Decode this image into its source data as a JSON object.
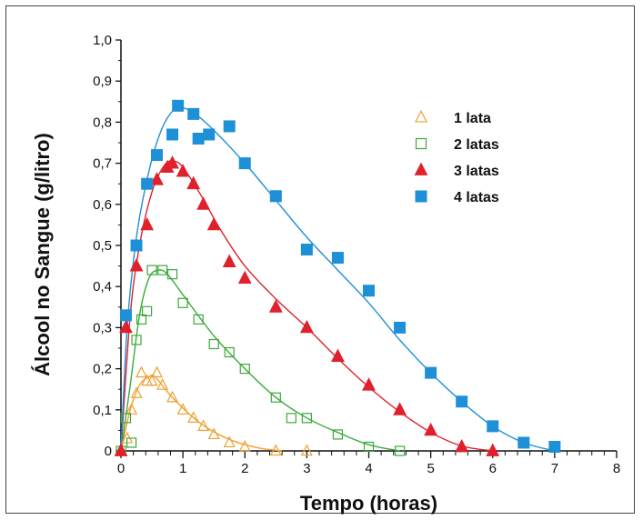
{
  "chart_data": {
    "type": "scatter",
    "title": "",
    "xlabel": "Tempo (horas)",
    "ylabel": "Álcool no Sangue (g/litro)",
    "xlim": [
      0,
      8
    ],
    "ylim": [
      0,
      1.0
    ],
    "x_ticks": [
      "0",
      "1",
      "2",
      "3",
      "4",
      "5",
      "6",
      "7",
      "8"
    ],
    "y_ticks": [
      "0",
      "0,1",
      "0,2",
      "0,3",
      "0,4",
      "0,5",
      "0,6",
      "0,7",
      "0,8",
      "0,9",
      "1,0"
    ],
    "grid": false,
    "legend_position": "top-right",
    "series": [
      {
        "name": "1 lata",
        "marker": "triangle-open",
        "color": "#f0a030",
        "points": [
          [
            0.0,
            0.0
          ],
          [
            0.1,
            0.03
          ],
          [
            0.17,
            0.1
          ],
          [
            0.25,
            0.14
          ],
          [
            0.33,
            0.19
          ],
          [
            0.42,
            0.17
          ],
          [
            0.5,
            0.17
          ],
          [
            0.58,
            0.19
          ],
          [
            0.67,
            0.16
          ],
          [
            0.83,
            0.13
          ],
          [
            1.0,
            0.1
          ],
          [
            1.17,
            0.08
          ],
          [
            1.33,
            0.06
          ],
          [
            1.5,
            0.04
          ],
          [
            1.75,
            0.02
          ],
          [
            2.0,
            0.01
          ],
          [
            2.5,
            0.0
          ],
          [
            3.0,
            0.0
          ]
        ],
        "curve": [
          [
            0,
            0
          ],
          [
            0.15,
            0.1
          ],
          [
            0.3,
            0.16
          ],
          [
            0.45,
            0.18
          ],
          [
            0.55,
            0.18
          ],
          [
            0.8,
            0.135
          ],
          [
            1.1,
            0.09
          ],
          [
            1.4,
            0.055
          ],
          [
            1.8,
            0.025
          ],
          [
            2.2,
            0.008
          ],
          [
            2.6,
            0.0
          ]
        ]
      },
      {
        "name": "2 latas",
        "marker": "square-open",
        "color": "#3aaa3a",
        "points": [
          [
            0.0,
            0.0
          ],
          [
            0.08,
            0.08
          ],
          [
            0.17,
            0.02
          ],
          [
            0.25,
            0.27
          ],
          [
            0.33,
            0.32
          ],
          [
            0.42,
            0.34
          ],
          [
            0.5,
            0.44
          ],
          [
            0.67,
            0.44
          ],
          [
            0.83,
            0.43
          ],
          [
            1.0,
            0.36
          ],
          [
            1.25,
            0.32
          ],
          [
            1.5,
            0.26
          ],
          [
            1.75,
            0.24
          ],
          [
            2.0,
            0.2
          ],
          [
            2.5,
            0.13
          ],
          [
            2.75,
            0.08
          ],
          [
            3.0,
            0.08
          ],
          [
            3.5,
            0.04
          ],
          [
            4.0,
            0.01
          ],
          [
            4.5,
            0.0
          ]
        ],
        "curve": [
          [
            0,
            0
          ],
          [
            0.15,
            0.16
          ],
          [
            0.3,
            0.33
          ],
          [
            0.45,
            0.42
          ],
          [
            0.6,
            0.44
          ],
          [
            0.75,
            0.43
          ],
          [
            1.0,
            0.38
          ],
          [
            1.5,
            0.28
          ],
          [
            2.0,
            0.2
          ],
          [
            2.5,
            0.13
          ],
          [
            3.0,
            0.08
          ],
          [
            3.5,
            0.045
          ],
          [
            4.0,
            0.015
          ],
          [
            4.5,
            0.0
          ]
        ]
      },
      {
        "name": "3 latas",
        "marker": "triangle",
        "color": "#e0202c",
        "points": [
          [
            0.0,
            0.0
          ],
          [
            0.08,
            0.3
          ],
          [
            0.25,
            0.45
          ],
          [
            0.42,
            0.55
          ],
          [
            0.58,
            0.66
          ],
          [
            0.75,
            0.69
          ],
          [
            0.83,
            0.7
          ],
          [
            1.0,
            0.68
          ],
          [
            1.17,
            0.65
          ],
          [
            1.33,
            0.6
          ],
          [
            1.5,
            0.55
          ],
          [
            1.75,
            0.46
          ],
          [
            2.0,
            0.42
          ],
          [
            2.5,
            0.35
          ],
          [
            3.0,
            0.3
          ],
          [
            3.5,
            0.23
          ],
          [
            4.0,
            0.16
          ],
          [
            4.5,
            0.1
          ],
          [
            5.0,
            0.05
          ],
          [
            5.5,
            0.01
          ],
          [
            6.0,
            0.0
          ]
        ],
        "curve": [
          [
            0,
            0
          ],
          [
            0.15,
            0.33
          ],
          [
            0.3,
            0.5
          ],
          [
            0.5,
            0.63
          ],
          [
            0.7,
            0.695
          ],
          [
            0.85,
            0.705
          ],
          [
            1.0,
            0.69
          ],
          [
            1.3,
            0.62
          ],
          [
            1.6,
            0.54
          ],
          [
            2.0,
            0.45
          ],
          [
            2.5,
            0.37
          ],
          [
            3.0,
            0.3
          ],
          [
            3.5,
            0.225
          ],
          [
            4.0,
            0.155
          ],
          [
            4.5,
            0.095
          ],
          [
            5.0,
            0.045
          ],
          [
            5.5,
            0.012
          ],
          [
            6.0,
            0.0
          ]
        ]
      },
      {
        "name": "4 latas",
        "marker": "square",
        "color": "#1e90d8",
        "points": [
          [
            0.08,
            0.33
          ],
          [
            0.25,
            0.5
          ],
          [
            0.42,
            0.65
          ],
          [
            0.58,
            0.72
          ],
          [
            0.83,
            0.77
          ],
          [
            0.92,
            0.84
          ],
          [
            1.17,
            0.82
          ],
          [
            1.25,
            0.76
          ],
          [
            1.42,
            0.77
          ],
          [
            1.75,
            0.79
          ],
          [
            2.0,
            0.7
          ],
          [
            2.5,
            0.62
          ],
          [
            3.0,
            0.49
          ],
          [
            3.5,
            0.47
          ],
          [
            4.0,
            0.39
          ],
          [
            4.5,
            0.3
          ],
          [
            5.0,
            0.19
          ],
          [
            5.5,
            0.12
          ],
          [
            6.0,
            0.06
          ],
          [
            6.5,
            0.02
          ],
          [
            7.0,
            0.01
          ]
        ],
        "curve": [
          [
            0,
            0
          ],
          [
            0.1,
            0.3
          ],
          [
            0.25,
            0.52
          ],
          [
            0.45,
            0.68
          ],
          [
            0.65,
            0.78
          ],
          [
            0.85,
            0.83
          ],
          [
            1.0,
            0.835
          ],
          [
            1.2,
            0.82
          ],
          [
            1.5,
            0.78
          ],
          [
            2.0,
            0.7
          ],
          [
            2.5,
            0.61
          ],
          [
            3.0,
            0.52
          ],
          [
            3.5,
            0.44
          ],
          [
            4.0,
            0.36
          ],
          [
            4.5,
            0.27
          ],
          [
            5.0,
            0.19
          ],
          [
            5.5,
            0.12
          ],
          [
            6.0,
            0.06
          ],
          [
            6.5,
            0.02
          ],
          [
            7.0,
            0.0
          ]
        ]
      }
    ]
  }
}
